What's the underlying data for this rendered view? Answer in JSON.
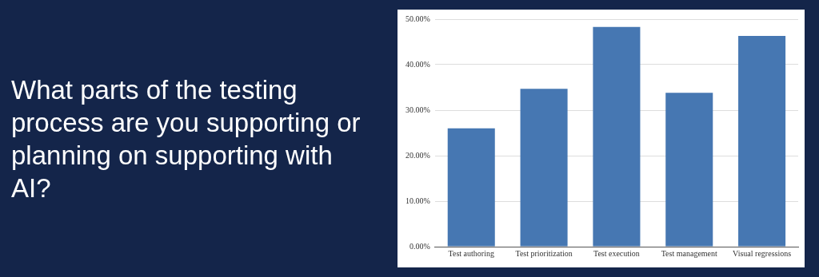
{
  "chart_data": {
    "type": "bar",
    "title": "What parts of the testing process are you supporting or planning on supporting with AI?",
    "categories": [
      "Test authoring",
      "Test prioritization",
      "Test execution",
      "Test management",
      "Visual regressions"
    ],
    "values": [
      26.0,
      34.7,
      48.3,
      33.8,
      46.3
    ],
    "color": "#4677b2",
    "ylim": [
      0,
      50
    ],
    "yticks": [
      {
        "value": 0,
        "label": "0.00%"
      },
      {
        "value": 10,
        "label": "10.00%"
      },
      {
        "value": 20,
        "label": "20.00%"
      },
      {
        "value": 30,
        "label": "30.00%"
      },
      {
        "value": 40,
        "label": "40.00%"
      },
      {
        "value": 50,
        "label": "50.00%"
      }
    ],
    "grid": "y",
    "legend": false
  }
}
